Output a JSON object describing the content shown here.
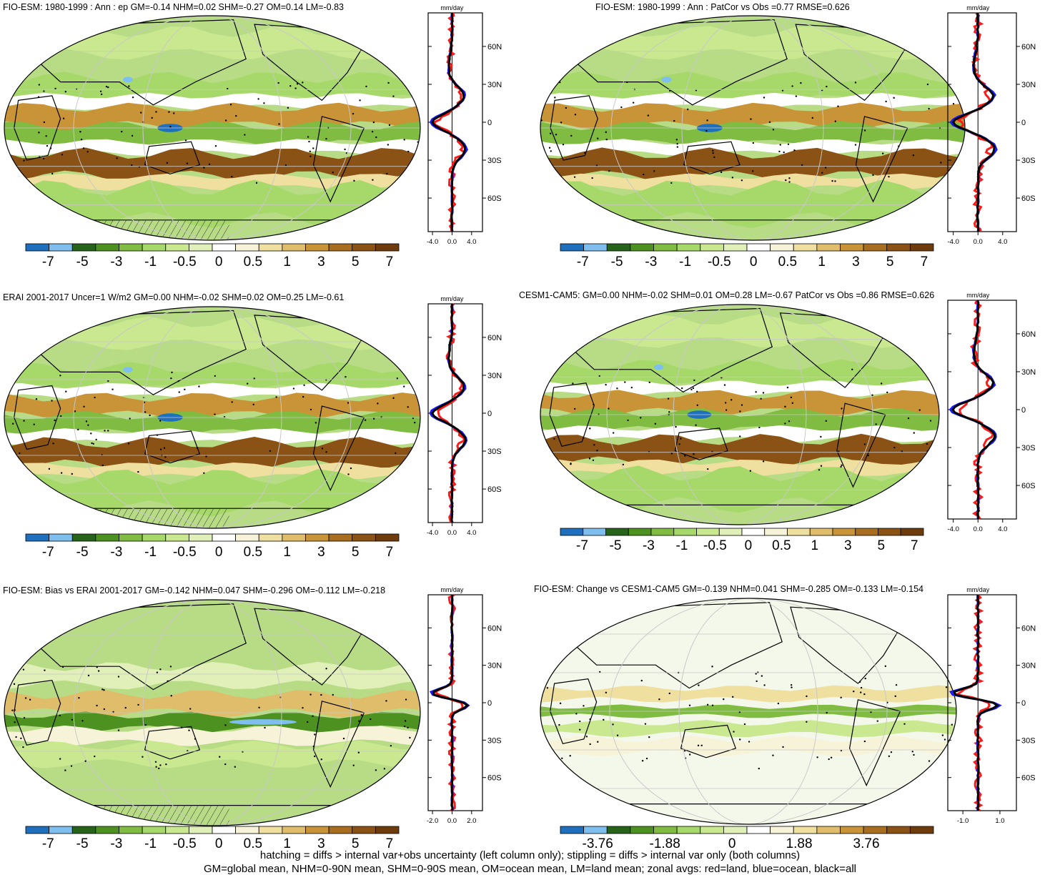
{
  "panels": [
    {
      "title": "FIO-ESM: 1980-1999 : Ann : ep GM=-0.14 NHM=0.02 SHM=-0.27 OM=0.14 LM=-0.83",
      "zonal": {
        "unit": "mm/day",
        "xticks": [
          "-4.0",
          "0.0",
          "4.0"
        ],
        "yticks": [
          "60N",
          "30N",
          "0",
          "30S",
          "60S"
        ]
      },
      "colorbar": [
        "-7",
        "-5",
        "-3",
        "-1",
        "-0.5",
        "0",
        "0.5",
        "1",
        "3",
        "5",
        "7"
      ]
    },
    {
      "title": "FIO-ESM: 1980-1999 : Ann : PatCor vs Obs =0.77 RMSE=0.626",
      "zonal": {
        "unit": "mm/day",
        "xticks": [
          "-4.0",
          "0.0",
          "4.0"
        ],
        "yticks": [
          "60N",
          "30N",
          "0",
          "30S",
          "60S"
        ]
      },
      "colorbar": [
        "-7",
        "-5",
        "-3",
        "-1",
        "-0.5",
        "0",
        "0.5",
        "1",
        "3",
        "5",
        "7"
      ]
    },
    {
      "title": "ERAI 2001-2017 Uncer=1 W/m2 GM=0.00 NHM=-0.02 SHM=0.02 OM=0.25 LM=-0.61",
      "zonal": {
        "unit": "mm/day",
        "xticks": [
          "-4.0",
          "0.0",
          "4.0"
        ],
        "yticks": [
          "60N",
          "30N",
          "0",
          "30S",
          "60S"
        ]
      },
      "colorbar": [
        "-7",
        "-5",
        "-3",
        "-1",
        "-0.5",
        "0",
        "0.5",
        "1",
        "3",
        "5",
        "7"
      ]
    },
    {
      "title": "CESM1-CAM5: GM=0.00 NHM=-0.02 SHM=0.01 OM=0.28 LM=-0.67 PatCor vs Obs =0.86 RMSE=0.626",
      "zonal": {
        "unit": "mm/day",
        "xticks": [
          "-4.0",
          "0.0",
          "4.0"
        ],
        "yticks": [
          "60N",
          "30N",
          "0",
          "30S",
          "60S"
        ]
      },
      "colorbar": [
        "-7",
        "-5",
        "-3",
        "-1",
        "-0.5",
        "0",
        "0.5",
        "1",
        "3",
        "5",
        "7"
      ]
    },
    {
      "title": "FIO-ESM: Bias vs ERAI 2001-2017 GM=-0.142 NHM=0.047 SHM=-0.296 OM=-0.112 LM=-0.218",
      "zonal": {
        "unit": "mm/day",
        "xticks": [
          "-2.0",
          "0.0",
          "2.0"
        ],
        "yticks": [
          "60N",
          "30N",
          "0",
          "30S",
          "60S"
        ]
      },
      "colorbar": [
        "-7",
        "-5",
        "-3",
        "-1",
        "-0.5",
        "0",
        "0.5",
        "1",
        "3",
        "5",
        "7"
      ]
    },
    {
      "title": "FIO-ESM: Change vs CESM1-CAM5 GM=-0.139 NHM=0.041 SHM=-0.285 OM=-0.133 LM=-0.154",
      "zonal": {
        "unit": "mm/day",
        "xticks": [
          "-1.0",
          "1.0"
        ],
        "yticks": [
          "60N",
          "30N",
          "0",
          "30S",
          "60S"
        ]
      },
      "colorbar": [
        "-3.76",
        "-1.88",
        "0",
        "1.88",
        "3.76"
      ]
    }
  ],
  "footer": {
    "line1": "hatching = diffs > internal var+obs uncertainty (left column only); stippling = diffs > internal var only (both columns)",
    "line2": "GM=global mean, NHM=0-90N mean, SHM=0-90S mean, OM=ocean mean, LM=land mean; zonal avgs: red=land, blue=ocean, black=all"
  },
  "colors": {
    "colorbar": [
      "#1f6fbf",
      "#7fbfef",
      "#276419",
      "#4d9221",
      "#7fbc41",
      "#a6d96a",
      "#c9e88f",
      "#e0f0b8",
      "#ffffff",
      "#f7f3d8",
      "#f0e0a0",
      "#dfbd6a",
      "#c99437",
      "#a96d1f",
      "#8a5214",
      "#6e3c0c"
    ],
    "land_line": "#ff1a1a",
    "ocean_line": "#1a1aff",
    "all_line": "#000000"
  }
}
